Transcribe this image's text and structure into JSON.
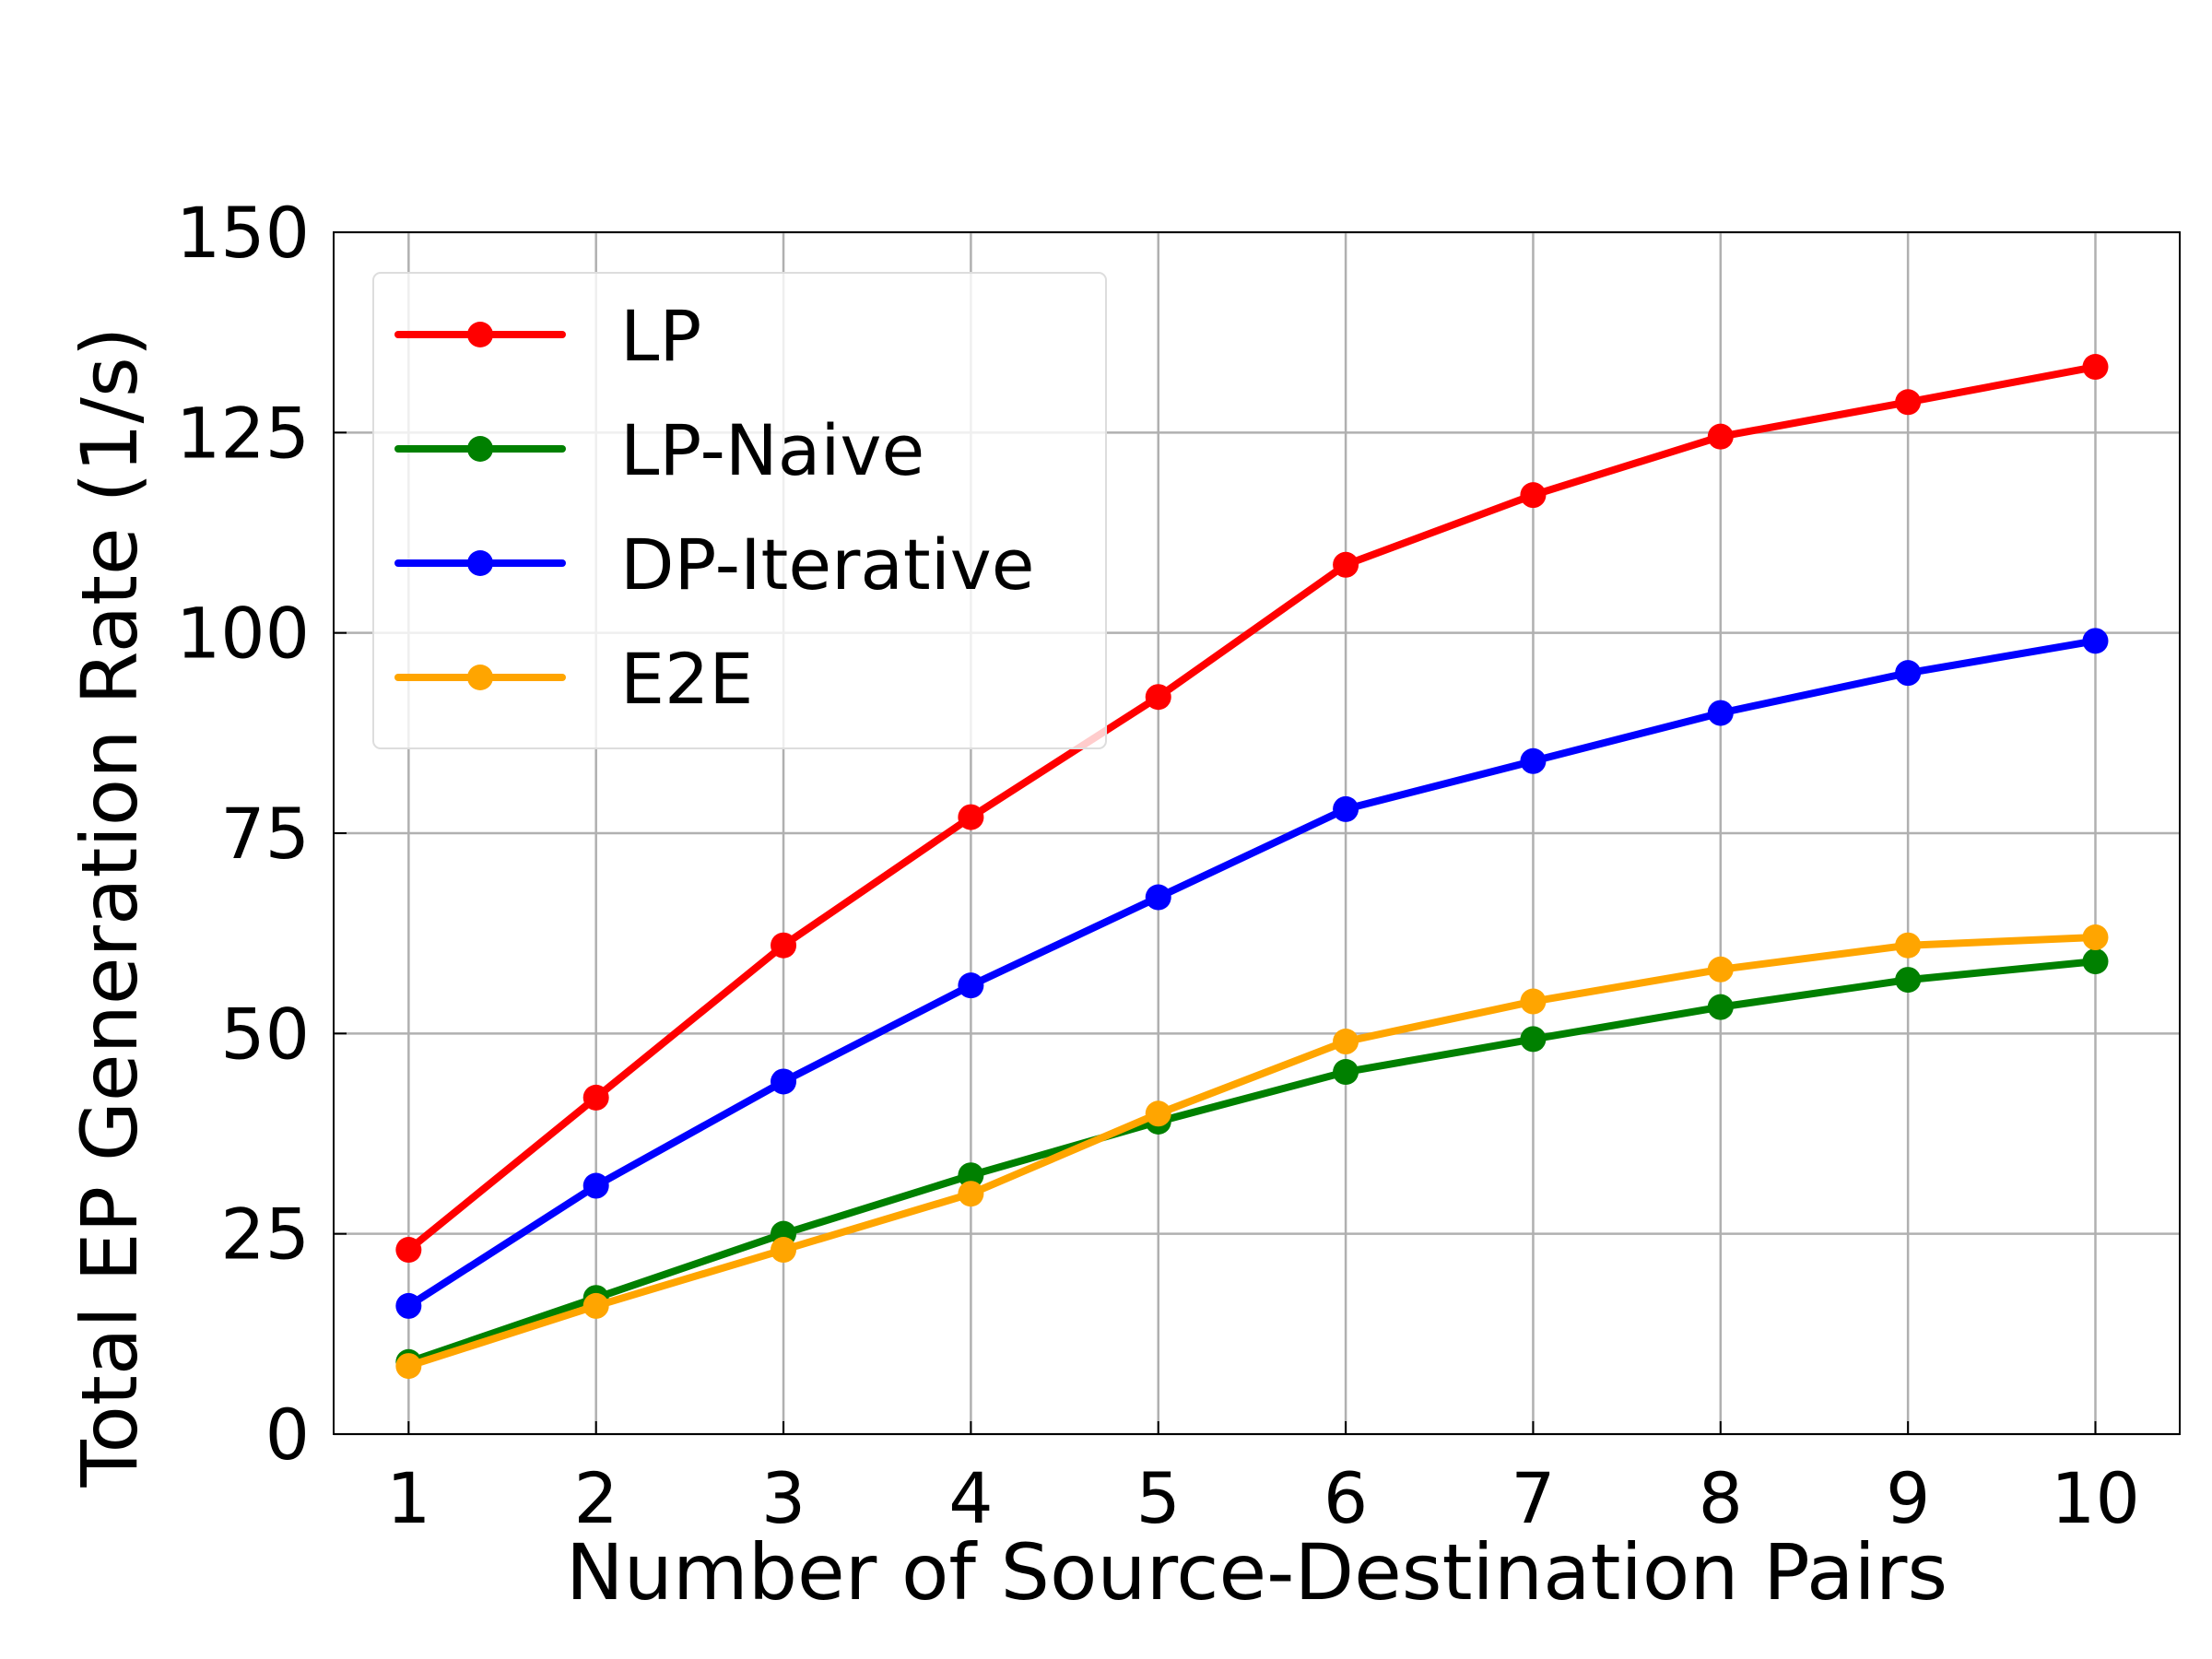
{
  "chart_data": {
    "type": "line",
    "xlabel": "Number of Source-Destination Pairs",
    "ylabel": "Total EP Generation Rate (1/s)",
    "x": [
      1,
      2,
      3,
      4,
      5,
      6,
      7,
      8,
      9,
      10
    ],
    "xlim": [
      0.6,
      10.45
    ],
    "ylim": [
      0,
      150
    ],
    "xticks": [
      1,
      2,
      3,
      4,
      5,
      6,
      7,
      8,
      9,
      10
    ],
    "yticks": [
      0,
      25,
      50,
      75,
      100,
      125,
      150
    ],
    "grid": true,
    "legend_position": "top-left",
    "series": [
      {
        "name": "LP",
        "color": "#ff0000",
        "values": [
          23,
          42,
          61,
          77,
          92,
          108.5,
          117.2,
          124.5,
          128.8,
          133.2
        ]
      },
      {
        "name": "LP-Naive",
        "color": "#008000",
        "values": [
          9,
          17,
          25,
          32.3,
          39,
          45.2,
          49.3,
          53.3,
          56.7,
          59
        ]
      },
      {
        "name": "DP-Iterative",
        "color": "#0000ff",
        "values": [
          16,
          31,
          44,
          56,
          67,
          78,
          84,
          90,
          95,
          99
        ]
      },
      {
        "name": "E2E",
        "color": "#ffa500",
        "values": [
          8.5,
          16,
          23,
          30,
          40,
          49,
          54,
          58,
          61,
          62
        ]
      }
    ]
  }
}
